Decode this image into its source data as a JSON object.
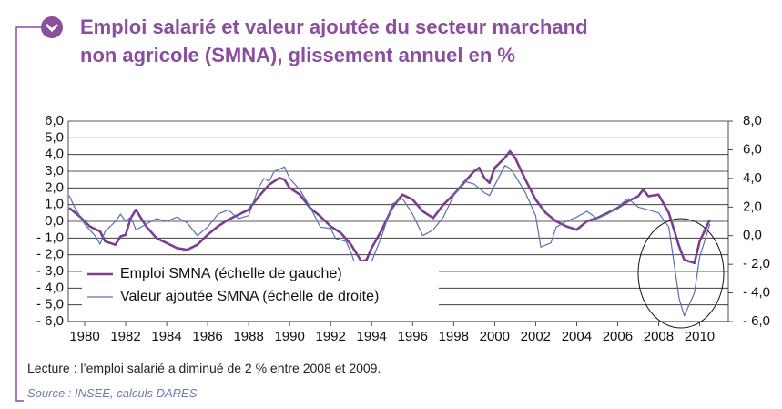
{
  "chart_data": {
    "type": "line",
    "title": "Emploi salarié et valeur ajoutée du secteur marchand\nnon agricole (SMNA), glissement annuel en %",
    "note": "Lecture : l’emploi salarié a diminué de 2 % entre 2008 et 2009.",
    "source": "Source : INSEE, calculs DARES",
    "xlim": [
      1979.2,
      2011.4
    ],
    "xticks": [
      1980,
      1982,
      1984,
      1986,
      1988,
      1990,
      1992,
      1994,
      1996,
      1998,
      2000,
      2002,
      2004,
      2006,
      2008,
      2010
    ],
    "ylim": [
      -6,
      6
    ],
    "yticks": [
      {
        "value": 6,
        "label": "6,0"
      },
      {
        "value": 5,
        "label": "5,0"
      },
      {
        "value": 4,
        "label": "4,0"
      },
      {
        "value": 3,
        "label": "3,0"
      },
      {
        "value": 2,
        "label": "2,0"
      },
      {
        "value": 1,
        "label": "1,0"
      },
      {
        "value": 0,
        "label": "0,0"
      },
      {
        "value": -1,
        "label": "- 1,0"
      },
      {
        "value": -2,
        "label": "- 2,0"
      },
      {
        "value": -3,
        "label": "- 3,0"
      },
      {
        "value": -4,
        "label": "- 4,0"
      },
      {
        "value": -5,
        "label": "- 5,0"
      },
      {
        "value": -6,
        "label": "- 6,0"
      }
    ],
    "y2lim": [
      -6,
      8
    ],
    "y2ticks": [
      {
        "value": 8,
        "label": "8,0"
      },
      {
        "value": 6,
        "label": "6,0"
      },
      {
        "value": 4,
        "label": "4,0"
      },
      {
        "value": 2,
        "label": "2,0"
      },
      {
        "value": 0,
        "label": "0,0"
      },
      {
        "value": -2,
        "label": "- 2,0"
      },
      {
        "value": -4,
        "label": "- 4,0"
      },
      {
        "value": -6,
        "label": "- 6,0"
      }
    ],
    "grid": true,
    "legend": "lower left",
    "series": [
      {
        "name": "Emploi SMNA (échelle de gauche)",
        "color": "#7b3f8f",
        "width": 2.6,
        "axis": "y",
        "x": [
          1979.25,
          1979.75,
          1980.25,
          1980.75,
          1981.0,
          1981.5,
          1981.75,
          1982.0,
          1982.25,
          1982.5,
          1982.75,
          1983.0,
          1983.5,
          1984.0,
          1984.5,
          1985.0,
          1985.5,
          1986.0,
          1986.5,
          1987.0,
          1987.5,
          1988.0,
          1988.5,
          1989.0,
          1989.5,
          1989.75,
          1990.0,
          1990.5,
          1991.0,
          1991.5,
          1992.0,
          1992.5,
          1993.0,
          1993.5,
          1993.75,
          1994.0,
          1994.5,
          1995.0,
          1995.5,
          1996.0,
          1996.5,
          1997.0,
          1997.5,
          1998.0,
          1998.5,
          1999.0,
          1999.25,
          1999.5,
          1999.75,
          2000.0,
          2000.5,
          2000.75,
          2001.0,
          2001.5,
          2002.0,
          2002.5,
          2003.0,
          2003.5,
          2004.0,
          2004.5,
          2005.0,
          2005.5,
          2006.0,
          2006.5,
          2007.0,
          2007.25,
          2007.5,
          2008.0,
          2008.5,
          2009.0,
          2009.25,
          2009.75,
          2010.0,
          2010.5
        ],
        "values": [
          0.8,
          0.3,
          -0.3,
          -0.6,
          -1.2,
          -1.4,
          -0.9,
          -0.8,
          0.2,
          0.7,
          0.2,
          -0.3,
          -1.0,
          -1.3,
          -1.6,
          -1.7,
          -1.4,
          -0.8,
          -0.3,
          0.1,
          0.4,
          0.7,
          1.5,
          2.2,
          2.6,
          2.5,
          2.0,
          1.6,
          0.8,
          0.3,
          -0.3,
          -0.7,
          -1.4,
          -2.4,
          -2.3,
          -1.6,
          -0.5,
          0.8,
          1.6,
          1.3,
          0.6,
          0.2,
          1.0,
          1.6,
          2.3,
          3.0,
          3.2,
          2.6,
          2.3,
          3.2,
          3.8,
          4.2,
          3.8,
          2.5,
          1.3,
          0.5,
          0.0,
          -0.3,
          -0.5,
          0.0,
          0.2,
          0.5,
          0.8,
          1.2,
          1.5,
          1.9,
          1.5,
          1.6,
          0.5,
          -1.5,
          -2.3,
          -2.5,
          -1.2,
          0.1
        ]
      },
      {
        "name": "Valeur ajoutée SMNA (échelle de droite)",
        "color": "#5a6fb0",
        "width": 1.2,
        "axis": "y2",
        "x": [
          1979.25,
          1979.5,
          1980.0,
          1980.5,
          1980.75,
          1981.0,
          1981.5,
          1981.75,
          1982.0,
          1982.25,
          1982.5,
          1983.0,
          1983.5,
          1984.0,
          1984.5,
          1985.0,
          1985.5,
          1986.0,
          1986.5,
          1987.0,
          1987.5,
          1988.0,
          1988.5,
          1988.75,
          1989.0,
          1989.25,
          1989.75,
          1990.0,
          1990.5,
          1991.0,
          1991.5,
          1992.0,
          1992.25,
          1992.75,
          1993.0,
          1993.25,
          1993.5,
          1994.0,
          1994.5,
          1995.0,
          1995.5,
          1996.0,
          1996.5,
          1997.0,
          1997.5,
          1998.0,
          1998.5,
          1999.0,
          1999.5,
          1999.75,
          2000.0,
          2000.5,
          2000.75,
          2001.0,
          2001.5,
          2002.0,
          2002.25,
          2002.75,
          2003.0,
          2003.5,
          2004.0,
          2004.5,
          2005.0,
          2005.5,
          2006.0,
          2006.5,
          2007.0,
          2007.5,
          2008.0,
          2008.5,
          2009.0,
          2009.25,
          2009.75,
          2010.0,
          2010.5
        ],
        "values": [
          2.8,
          2.0,
          0.8,
          0.0,
          -0.6,
          0.3,
          1.0,
          1.5,
          1.0,
          1.3,
          0.4,
          0.8,
          1.2,
          1.0,
          1.3,
          0.9,
          0.0,
          0.6,
          1.5,
          1.8,
          1.2,
          1.4,
          3.4,
          4.0,
          3.8,
          4.5,
          4.8,
          4.0,
          3.2,
          2.0,
          0.6,
          0.5,
          -0.2,
          -0.4,
          -1.2,
          -2.2,
          -2.4,
          -1.8,
          0.0,
          2.2,
          2.6,
          1.5,
          0.0,
          0.4,
          1.3,
          2.8,
          3.8,
          3.6,
          3.0,
          2.8,
          3.5,
          4.9,
          4.7,
          4.2,
          3.0,
          1.4,
          -0.8,
          -0.5,
          0.6,
          1.0,
          1.3,
          1.7,
          1.2,
          1.5,
          2.0,
          2.6,
          2.0,
          1.8,
          1.6,
          0.6,
          -4.4,
          -5.6,
          -4.0,
          -1.5,
          0.8
        ]
      }
    ]
  }
}
